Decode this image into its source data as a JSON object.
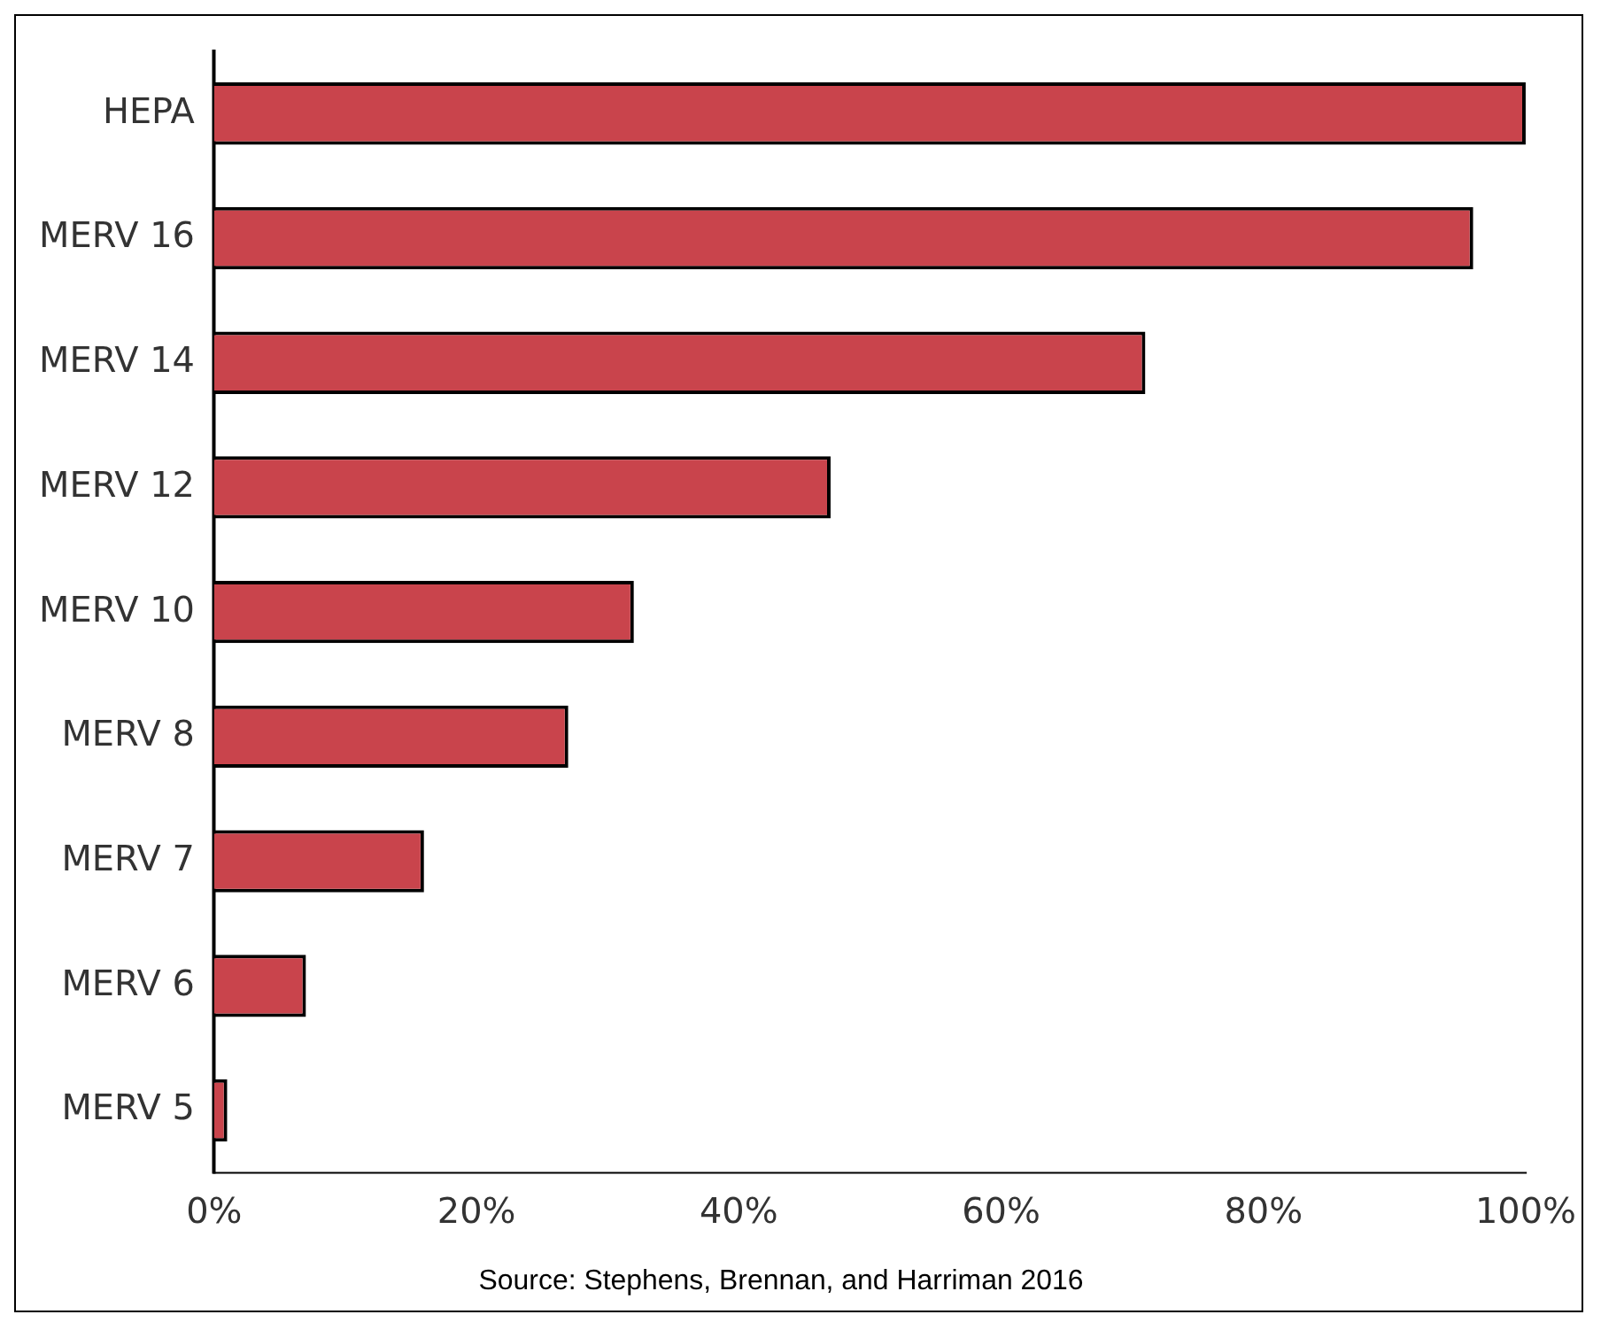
{
  "chart_data": {
    "type": "bar",
    "orientation": "horizontal",
    "categories": [
      "HEPA",
      "MERV 16",
      "MERV 14",
      "MERV 12",
      "MERV 10",
      "MERV 8",
      "MERV 7",
      "MERV 6",
      "MERV 5"
    ],
    "values": [
      100,
      96,
      71,
      47,
      32,
      27,
      16,
      7,
      1
    ],
    "color": "#c9444c",
    "xlim": [
      0,
      100
    ],
    "xticks": [
      {
        "value": 0,
        "label": "0%"
      },
      {
        "value": 20,
        "label": "20%"
      },
      {
        "value": 40,
        "label": "40%"
      },
      {
        "value": 60,
        "label": "60%"
      },
      {
        "value": 80,
        "label": "80%"
      },
      {
        "value": 100,
        "label": "100%"
      }
    ],
    "grid": false,
    "legend": false,
    "annotations": [
      "Source: Stephens, Brennan, and Harriman 2016"
    ]
  }
}
